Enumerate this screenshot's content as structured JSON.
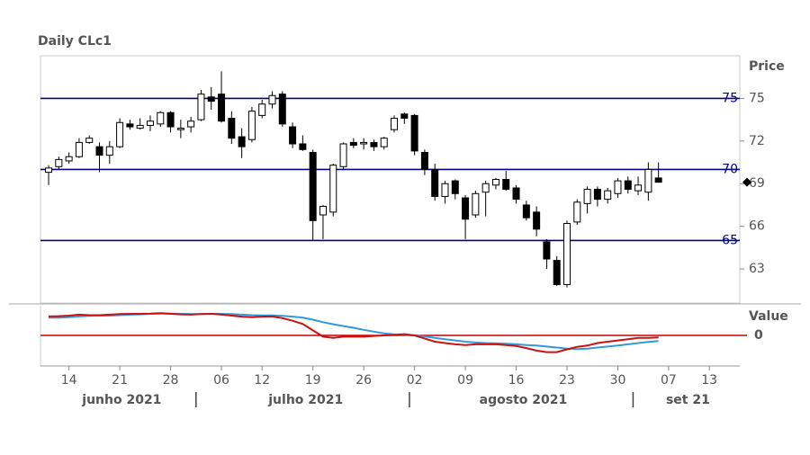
{
  "chart_data": [
    {
      "type": "candlestick",
      "title": "Daily CLc1",
      "y_label": "Price",
      "categories": [
        "2021-06-10",
        "2021-06-11",
        "2021-06-14",
        "2021-06-15",
        "2021-06-16",
        "2021-06-17",
        "2021-06-18",
        "2021-06-21",
        "2021-06-22",
        "2021-06-23",
        "2021-06-24",
        "2021-06-25",
        "2021-06-28",
        "2021-06-29",
        "2021-06-30",
        "2021-07-01",
        "2021-07-02",
        "2021-07-06",
        "2021-07-07",
        "2021-07-08",
        "2021-07-09",
        "2021-07-12",
        "2021-07-13",
        "2021-07-14",
        "2021-07-15",
        "2021-07-16",
        "2021-07-19",
        "2021-07-20",
        "2021-07-21",
        "2021-07-22",
        "2021-07-23",
        "2021-07-26",
        "2021-07-27",
        "2021-07-28",
        "2021-07-29",
        "2021-07-30",
        "2021-08-02",
        "2021-08-03",
        "2021-08-04",
        "2021-08-05",
        "2021-08-06",
        "2021-08-09",
        "2021-08-10",
        "2021-08-11",
        "2021-08-12",
        "2021-08-13",
        "2021-08-16",
        "2021-08-17",
        "2021-08-18",
        "2021-08-19",
        "2021-08-20",
        "2021-08-23",
        "2021-08-24",
        "2021-08-25",
        "2021-08-26",
        "2021-08-27",
        "2021-08-30",
        "2021-08-31",
        "2021-09-01",
        "2021-09-02",
        "2021-09-03"
      ],
      "open": [
        69.8,
        70.2,
        70.6,
        70.9,
        71.9,
        71.6,
        71.0,
        71.6,
        73.2,
        72.9,
        73.1,
        73.2,
        74.0,
        72.8,
        73.0,
        73.5,
        75.1,
        75.3,
        73.6,
        72.3,
        72.1,
        73.8,
        74.6,
        75.3,
        73.0,
        71.8,
        71.2,
        66.8,
        67.0,
        70.2,
        71.9,
        71.8,
        71.9,
        71.6,
        72.8,
        73.9,
        73.8,
        71.2,
        70.0,
        68.1,
        69.2,
        68.0,
        66.8,
        68.4,
        68.9,
        69.3,
        68.7,
        67.5,
        67.0,
        64.9,
        63.6,
        61.9,
        66.3,
        67.6,
        68.6,
        67.9,
        68.3,
        69.2,
        68.5,
        68.4,
        69.4
      ],
      "high": [
        70.3,
        70.9,
        71.2,
        72.2,
        72.4,
        71.9,
        72.0,
        73.6,
        73.5,
        73.6,
        73.8,
        74.1,
        74.1,
        73.5,
        73.7,
        75.6,
        75.8,
        76.9,
        74.1,
        72.9,
        74.4,
        74.9,
        75.5,
        75.5,
        73.3,
        72.4,
        71.4,
        67.5,
        70.4,
        71.9,
        72.2,
        72.2,
        72.1,
        72.3,
        73.8,
        74.0,
        73.9,
        71.4,
        70.4,
        69.2,
        69.3,
        68.2,
        68.5,
        69.2,
        69.4,
        69.9,
        68.9,
        67.8,
        67.4,
        65.1,
        63.9,
        66.4,
        67.9,
        68.8,
        68.8,
        68.7,
        69.4,
        69.5,
        69.5,
        70.5,
        70.5
      ],
      "low": [
        68.9,
        70.0,
        70.4,
        70.8,
        71.8,
        69.8,
        70.4,
        71.5,
        72.8,
        72.8,
        72.7,
        73.0,
        72.6,
        72.2,
        72.6,
        73.4,
        74.2,
        73.3,
        71.8,
        70.8,
        71.9,
        73.6,
        74.3,
        73.0,
        71.5,
        71.3,
        65.0,
        65.1,
        66.7,
        70.0,
        71.5,
        71.4,
        71.3,
        71.4,
        72.6,
        73.2,
        71.0,
        69.6,
        67.8,
        67.6,
        67.9,
        65.1,
        66.6,
        66.7,
        68.6,
        68.5,
        67.6,
        66.4,
        65.3,
        63.0,
        61.8,
        61.7,
        66.1,
        66.9,
        67.4,
        67.6,
        68.0,
        68.3,
        68.2,
        67.8,
        69.1
      ],
      "close": [
        70.1,
        70.7,
        70.9,
        71.9,
        72.2,
        71.0,
        71.6,
        73.3,
        73.0,
        73.1,
        73.4,
        74.0,
        73.0,
        72.9,
        73.4,
        75.3,
        74.8,
        73.4,
        72.2,
        71.6,
        74.1,
        74.6,
        75.2,
        73.2,
        71.8,
        71.4,
        66.4,
        67.4,
        70.3,
        71.8,
        71.7,
        71.9,
        71.6,
        72.2,
        73.6,
        73.6,
        71.3,
        70.0,
        68.1,
        69.0,
        68.3,
        66.5,
        68.3,
        69.0,
        69.3,
        68.6,
        67.9,
        66.6,
        65.8,
        63.7,
        61.9,
        66.2,
        67.7,
        68.6,
        67.9,
        68.5,
        69.2,
        68.6,
        68.9,
        70.0,
        69.1
      ],
      "up_color": "#ffffff",
      "down_color": "#000000",
      "ylim": [
        60.6,
        78.0
      ],
      "yticks": [
        63,
        66,
        69,
        72,
        75
      ],
      "hlines": [
        65,
        70,
        75
      ],
      "hline_color": "#00008b",
      "xlim": [
        -0.8,
        68
      ],
      "xticks": [
        {
          "value": 2,
          "label": "14"
        },
        {
          "value": 7,
          "label": "21"
        },
        {
          "value": 12,
          "label": "28"
        },
        {
          "value": 17,
          "label": "06"
        },
        {
          "value": 21,
          "label": "12"
        },
        {
          "value": 26,
          "label": "19"
        },
        {
          "value": 31,
          "label": "26"
        },
        {
          "value": 36,
          "label": "02"
        },
        {
          "value": 41,
          "label": "09"
        },
        {
          "value": 46,
          "label": "16"
        },
        {
          "value": 51,
          "label": "23"
        },
        {
          "value": 56,
          "label": "30"
        },
        {
          "value": 61,
          "label": "07"
        },
        {
          "value": 65,
          "label": "13"
        }
      ],
      "month_labels": [
        {
          "value": 7.2,
          "label": "junho 2021"
        },
        {
          "value": 25.3,
          "label": "julho 2021"
        },
        {
          "value": 46.7,
          "label": "agosto 2021"
        },
        {
          "value": 62.9,
          "label": "set 21"
        }
      ]
    },
    {
      "type": "line",
      "y_label": "Value",
      "series": [
        {
          "color": "#3399dd",
          "values": [
            0.7,
            0.7,
            0.72,
            0.75,
            0.77,
            0.78,
            0.78,
            0.8,
            0.82,
            0.83,
            0.85,
            0.86,
            0.86,
            0.85,
            0.84,
            0.84,
            0.85,
            0.85,
            0.84,
            0.82,
            0.8,
            0.79,
            0.79,
            0.77,
            0.74,
            0.7,
            0.62,
            0.52,
            0.44,
            0.37,
            0.3,
            0.22,
            0.15,
            0.08,
            0.04,
            0.02,
            0.0,
            -0.04,
            -0.1,
            -0.15,
            -0.2,
            -0.25,
            -0.28,
            -0.3,
            -0.31,
            -0.33,
            -0.35,
            -0.38,
            -0.4,
            -0.44,
            -0.48,
            -0.52,
            -0.54,
            -0.52,
            -0.48,
            -0.44,
            -0.4,
            -0.35,
            -0.3,
            -0.26,
            -0.22
          ]
        },
        {
          "color": "#cc1111",
          "values": [
            0.75,
            0.76,
            0.78,
            0.82,
            0.8,
            0.8,
            0.82,
            0.84,
            0.85,
            0.85,
            0.86,
            0.88,
            0.85,
            0.83,
            0.82,
            0.84,
            0.85,
            0.82,
            0.78,
            0.74,
            0.72,
            0.74,
            0.75,
            0.68,
            0.58,
            0.45,
            0.2,
            -0.05,
            -0.1,
            -0.05,
            -0.05,
            -0.05,
            -0.02,
            0.0,
            0.02,
            0.05,
            0.0,
            -0.12,
            -0.25,
            -0.3,
            -0.35,
            -0.38,
            -0.35,
            -0.35,
            -0.35,
            -0.38,
            -0.42,
            -0.5,
            -0.6,
            -0.66,
            -0.66,
            -0.55,
            -0.45,
            -0.4,
            -0.3,
            -0.25,
            -0.2,
            -0.15,
            -0.1,
            -0.1,
            -0.08
          ]
        }
      ],
      "ylim": [
        -1.1,
        1.1
      ],
      "yticks": [
        0
      ],
      "hlines": [
        0
      ],
      "hline_color": "#cc0000"
    }
  ]
}
